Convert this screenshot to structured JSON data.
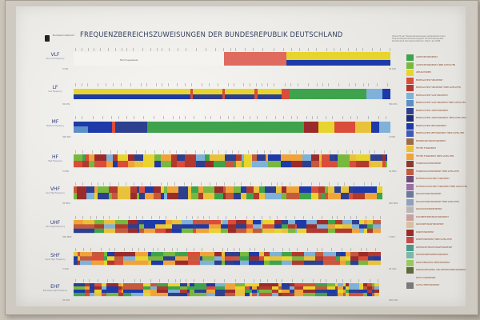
{
  "poster": {
    "title": "FREQUENZBEREICHSZUWEISUNGEN DER BUNDESREPUBLIK DEUTSCHLAND",
    "org": "Bundesministerium",
    "note": "Übersicht der Frequenzzuweisungen entsprechend dem Frequenzbereichszuweisungsplan der Bundesrepublik Deutschland. Bundesministerium, Stand: Juli 2008",
    "nicht_zugewiesen": "Nicht zugewiesen"
  },
  "bands": [
    {
      "id": "vlf",
      "label": "VLF",
      "sublabel": "Very Low Frequency",
      "freq_left": "3 kHz",
      "freq_right": "30 kHz"
    },
    {
      "id": "lf",
      "label": "LF",
      "sublabel": "Low Frequency",
      "freq_left": "30 kHz",
      "freq_right": "300 kHz"
    },
    {
      "id": "mf",
      "label": "MF",
      "sublabel": "Medium Frequency",
      "freq_left": "300 kHz",
      "freq_right": "3 MHz"
    },
    {
      "id": "hf",
      "label": "HF",
      "sublabel": "High Frequency",
      "freq_left": "3 MHz",
      "freq_right": "30 MHz"
    },
    {
      "id": "vhf",
      "label": "VHF",
      "sublabel": "Very High Frequency",
      "freq_left": "30 MHz",
      "freq_right": "300 MHz"
    },
    {
      "id": "uhf",
      "label": "UHF",
      "sublabel": "Ultra High Frequency",
      "freq_left": "300 MHz",
      "freq_right": "3 GHz"
    },
    {
      "id": "shf",
      "label": "SHF",
      "sublabel": "Super High Frequency",
      "freq_left": "3 GHz",
      "freq_right": "30 GHz"
    },
    {
      "id": "ehf",
      "label": "EHF",
      "sublabel": "Extremely High Frequency",
      "freq_left": "30 GHz",
      "freq_right": "300 GHz"
    }
  ],
  "legend": [
    {
      "label": "AMATEURFUNKDIENST",
      "color": "#3fa34d"
    },
    {
      "label": "AMATEURFUNKDIENST ÜBER SATELLITEN",
      "color": "#79b83e"
    },
    {
      "label": "APPLIKATIONEN",
      "color": "#e8d42e"
    },
    {
      "label": "BEWEGLICHER FUNKDIENST",
      "color": "#d94d3a"
    },
    {
      "label": "BEWEGLICHER FUNKDIENST ÜBER SATELLITEN",
      "color": "#b13a2e"
    },
    {
      "label": "BEWEGLICHER FLUGFUNKDIENST",
      "color": "#7fb1d9"
    },
    {
      "label": "BEWEGLICHER FLUGFUNKDIENST ÜBER SATELLITEN",
      "color": "#5c8fc7"
    },
    {
      "label": "BEWEGLICHER LANDFUNKDIENST",
      "color": "#2d3f8f"
    },
    {
      "label": "BEWEGLICHER LANDFUNKDIENST ÜBER SATELLITEN",
      "color": "#1f2d75"
    },
    {
      "label": "BEWEGLICHER SEEFUNKDIENST",
      "color": "#1d3aa8"
    },
    {
      "label": "BEWEGLICHER SEEFUNKDIENST ÜBER SATELLITEN",
      "color": "#3d5ab8"
    },
    {
      "label": "ERDERKUNDUNGSFUNKDIENST",
      "color": "#9b6b4a"
    },
    {
      "label": "FESTER FUNKDIENST",
      "color": "#e9c23b"
    },
    {
      "label": "FESTER FUNKDIENST ÜBER SATELLITEN",
      "color": "#f0a33a"
    },
    {
      "label": "FUNKNAVIGATIONSDIENST",
      "color": "#8a3c2a"
    },
    {
      "label": "FUNKNAVIGATIONSDIENST ÜBER SATELLITEN",
      "color": "#c45a3c"
    },
    {
      "label": "METEOROLOGISCHER FUNKDIENST",
      "color": "#6d4a78"
    },
    {
      "label": "METEOROLOGISCHER FUNKDIENST ÜBER SATELLITEN",
      "color": "#9a6fa8"
    },
    {
      "label": "NAVIGATIONSFUNKDIENST",
      "color": "#6a7a9a"
    },
    {
      "label": "NAVIGATIONSFUNKDIENST ÜBER SATELLITEN",
      "color": "#8fa0c0"
    },
    {
      "label": "RADIOASTRONOMIEDIENST",
      "color": "#b8b8b8"
    },
    {
      "label": "RADIOBESTIMMUNGSFUNKDIENST",
      "color": "#c8a0a0"
    },
    {
      "label": "RADIOORTUNGSFUNKDIENST",
      "color": "#d8c0a0"
    },
    {
      "label": "RUNDFUNKDIENST",
      "color": "#9b2b2b"
    },
    {
      "label": "RUNDFUNKDIENST ÜBER SATELLITEN",
      "color": "#c04b4b"
    },
    {
      "label": "WELTRAUMFORSCHUNGSFUNKDIENST",
      "color": "#4a9a8a"
    },
    {
      "label": "WELTRAUMBETRIEBSFUNKDIENST",
      "color": "#7ab8a8"
    },
    {
      "label": "ZWISCHENSATELLITENFUNKDIENST",
      "color": "#9ac860"
    },
    {
      "label": "NORMALFREQUENZ- UND ZEITZEICHENFUNKDIENST",
      "color": "#5c6b3a"
    },
    {
      "label": "NICHT ZUGEWIESEN",
      "color": "#e0e0e0"
    },
    {
      "label": "SATELLITENFUNKDIENST",
      "color": "#7a7a7a"
    }
  ]
}
